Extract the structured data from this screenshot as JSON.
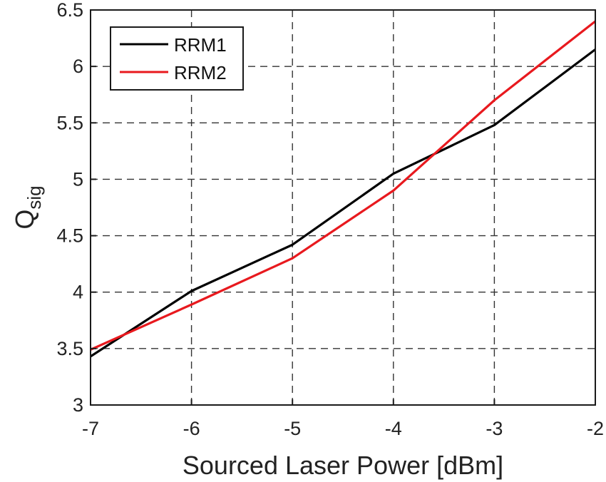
{
  "chart_data": {
    "type": "line",
    "xlabel": "Sourced Laser Power [dBm]",
    "ylabel_main": "Q",
    "ylabel_sub": "sig",
    "xlim": [
      -7,
      -2
    ],
    "ylim": [
      3,
      6.5
    ],
    "xticks": [
      "-7",
      "-6",
      "-5",
      "-4",
      "-3",
      "-2"
    ],
    "yticks": [
      "3",
      "3.5",
      "4",
      "4.5",
      "5",
      "5.5",
      "6",
      "6.5"
    ],
    "x": [
      -7,
      -6,
      -5,
      -4,
      -3,
      -2
    ],
    "grid": true,
    "legend_position": "top-left",
    "series": [
      {
        "name": "RRM1",
        "color": "#000000",
        "values": [
          3.43,
          4.01,
          4.42,
          5.05,
          5.48,
          6.15
        ]
      },
      {
        "name": "RRM2",
        "color": "#e8191e",
        "values": [
          3.49,
          3.89,
          4.3,
          4.9,
          5.7,
          6.4
        ]
      }
    ]
  }
}
